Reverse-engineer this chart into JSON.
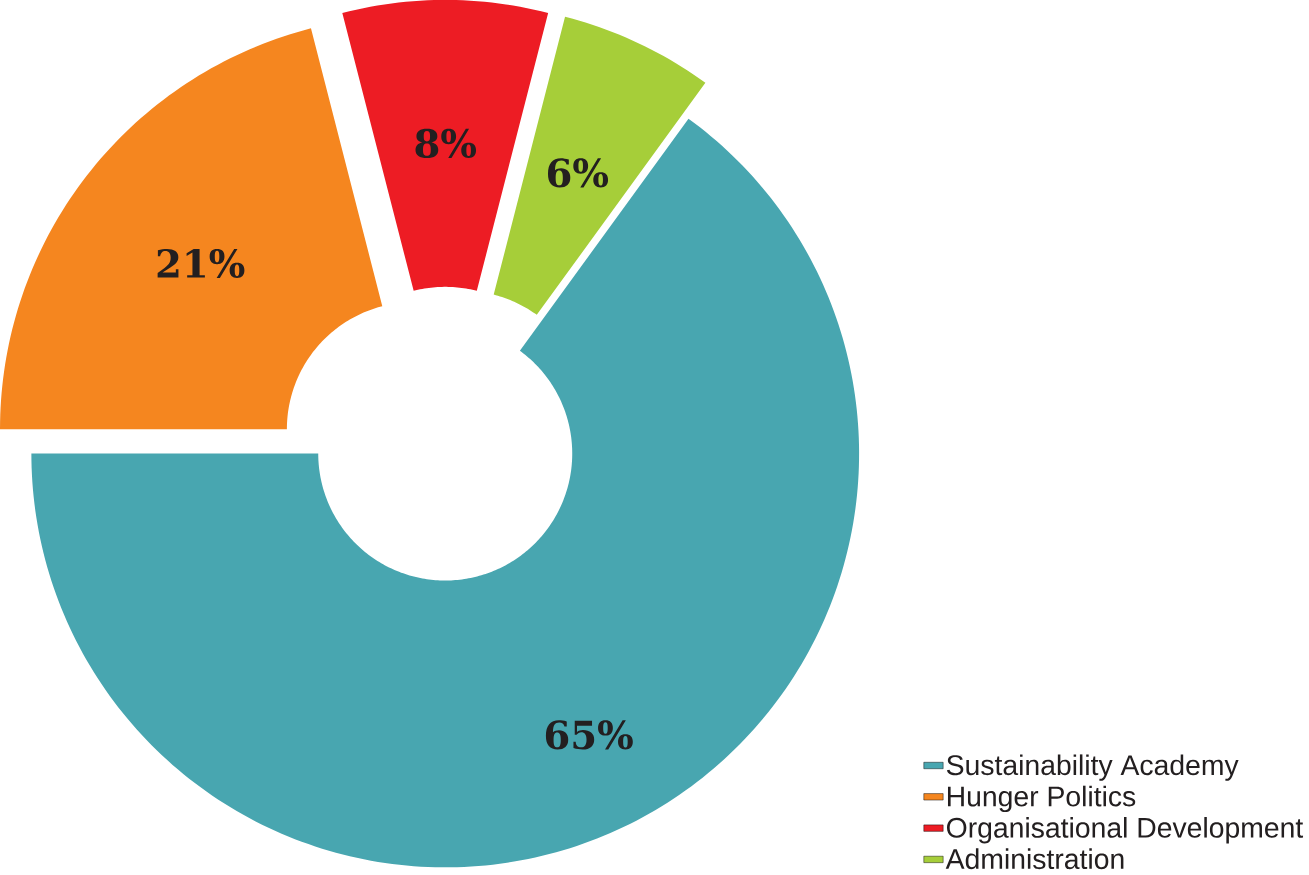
{
  "chart_data": {
    "type": "donut",
    "categories": [
      "Sustainability Academy",
      "Hunger Politics",
      "Organisational Development",
      "Administration"
    ],
    "values": [
      65,
      21,
      8,
      6
    ],
    "colors": [
      "#48a6b0",
      "#f5861f",
      "#ed1c24",
      "#a6ce39"
    ],
    "value_labels": [
      "65%",
      "21%",
      "8%",
      "6%"
    ],
    "legend": "bottom right"
  }
}
